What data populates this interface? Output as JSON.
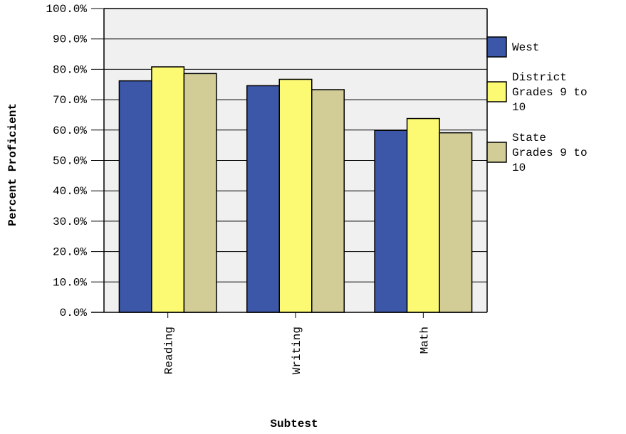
{
  "chart_data": {
    "type": "bar",
    "title": "",
    "xlabel": "Subtest",
    "ylabel": "Percent Proficient",
    "ylim": [
      0,
      100
    ],
    "y_tick_format": "percent_one_decimal",
    "yticks": [
      "0.0%",
      "10.0%",
      "20.0%",
      "30.0%",
      "40.0%",
      "50.0%",
      "60.0%",
      "70.0%",
      "80.0%",
      "90.0%",
      "100.0%"
    ],
    "categories": [
      "Reading",
      "Writing",
      "Math"
    ],
    "grid": true,
    "legend_position": "right",
    "series": [
      {
        "name": "West",
        "color": "#3c57a8",
        "values": [
          76.2,
          74.6,
          59.9
        ]
      },
      {
        "name": "District Grades 9 to 10",
        "color": "#fcfa73",
        "values": [
          80.8,
          76.7,
          63.8
        ]
      },
      {
        "name": "State Grades 9 to 10",
        "color": "#d2cd97",
        "values": [
          78.6,
          73.3,
          59.1
        ]
      }
    ],
    "legend_lines": [
      [
        "West"
      ],
      [
        "District",
        "Grades 9 to",
        "10"
      ],
      [
        "State",
        "Grades 9 to",
        "10"
      ]
    ],
    "plot_background": "#f0f0f0"
  }
}
